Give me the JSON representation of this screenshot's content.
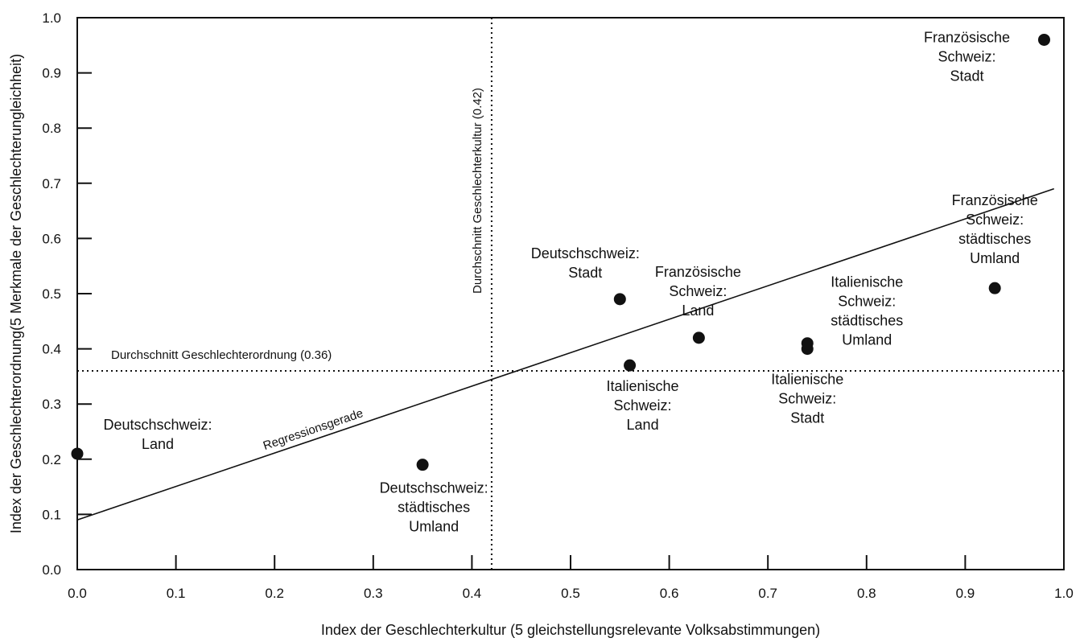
{
  "chart_data": {
    "type": "scatter",
    "xlabel": "Index der Geschlechterkultur (5 gleichstellungsrelevante Volksabstimmungen)",
    "ylabel": "Index der Geschlechterordnung(5 Merkmale der Geschlechterungleichheit)",
    "xlim": [
      0.0,
      1.0
    ],
    "ylim": [
      0.0,
      1.0
    ],
    "x_ticks": [
      "0.0",
      "0.1",
      "0.2",
      "0.3",
      "0.4",
      "0.5",
      "0.6",
      "0.7",
      "0.8",
      "0.9",
      "1.0"
    ],
    "y_ticks": [
      "0.0",
      "0.1",
      "0.2",
      "0.3",
      "0.4",
      "0.5",
      "0.6",
      "0.7",
      "0.8",
      "0.9",
      "1.0"
    ],
    "grid": false,
    "points": [
      {
        "x": 0.0,
        "y": 0.21,
        "label": [
          "Deutschschweiz:",
          "Land"
        ]
      },
      {
        "x": 0.35,
        "y": 0.19,
        "label": [
          "Deutschschweiz:",
          "städtisches",
          "Umland"
        ]
      },
      {
        "x": 0.55,
        "y": 0.49,
        "label": [
          "Deutschschweiz:",
          "Stadt"
        ]
      },
      {
        "x": 0.56,
        "y": 0.37,
        "label": [
          "Italienische",
          "Schweiz:",
          "Land"
        ]
      },
      {
        "x": 0.63,
        "y": 0.42,
        "label": [
          "Französische",
          "Schweiz:",
          "Land"
        ]
      },
      {
        "x": 0.74,
        "y": 0.4,
        "label": [
          "Italienische",
          "Schweiz:",
          "Stadt"
        ]
      },
      {
        "x": 0.74,
        "y": 0.41,
        "label": [
          "Italienische",
          "Schweiz:",
          "städtisches",
          "Umland"
        ]
      },
      {
        "x": 0.93,
        "y": 0.51,
        "label": [
          "Französische",
          "Schweiz:",
          "städtisches",
          "Umland"
        ]
      },
      {
        "x": 0.98,
        "y": 0.96,
        "label": [
          "Französische",
          "Schweiz:",
          "Stadt"
        ]
      }
    ],
    "reference_lines": [
      {
        "orientation": "vertical",
        "value": 0.42,
        "style": "dotted",
        "label": "Durchschnitt  Geschlechterkultur (0.42)"
      },
      {
        "orientation": "horizontal",
        "value": 0.36,
        "style": "dotted",
        "label": "Durchschnitt Geschlechterordnung (0.36)"
      }
    ],
    "regression_line": {
      "label": "Regressionsgerade",
      "points": [
        [
          0.0,
          0.09
        ],
        [
          0.99,
          0.69
        ]
      ]
    }
  }
}
